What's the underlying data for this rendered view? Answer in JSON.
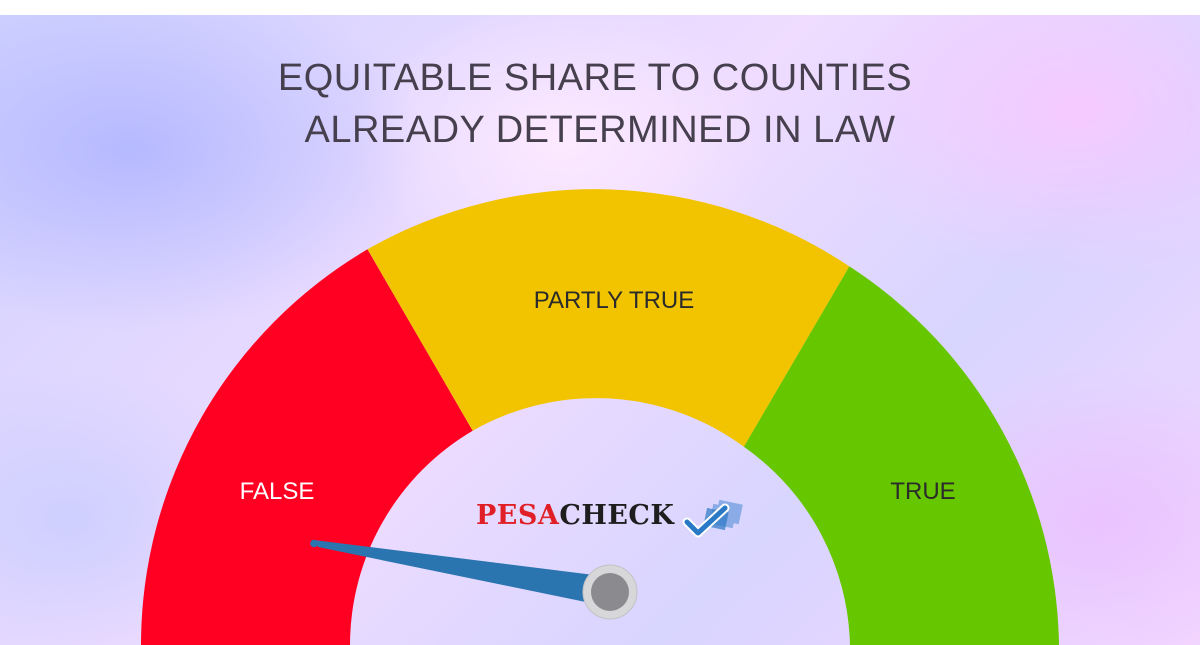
{
  "title": {
    "line1": "EQUITABLE SHARE TO COUNTIES",
    "line2": "ALREADY DETERMINED IN LAW"
  },
  "gauge": {
    "segments": [
      {
        "label": "FALSE",
        "color": "#ff0022",
        "text_color": "#ffffff"
      },
      {
        "label": "PARTLY TRUE",
        "color": "#f2c400",
        "text_color": "#2b2b2b"
      },
      {
        "label": "TRUE",
        "color": "#66c600",
        "text_color": "#2b2b2b"
      }
    ],
    "needle_color": "#2a74b0",
    "hub_color": "#8a8a8f",
    "verdict": "FALSE"
  },
  "logo": {
    "part1": "PESA",
    "part2": "CHECK",
    "icon": "checkmark-icon",
    "colors": {
      "part1": "#e01f26",
      "part2": "#1e1e1e",
      "mark": "#2a79c6"
    }
  }
}
